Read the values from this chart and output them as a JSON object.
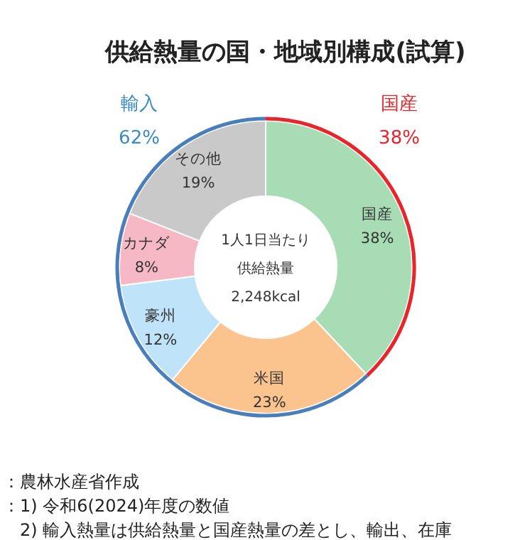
{
  "chart_data": {
    "type": "donut",
    "title": "供給熱量の国・地域別構成(試算)",
    "categories": [
      "国産",
      "米国",
      "豪州",
      "カナダ",
      "その他"
    ],
    "values": [
      38,
      23,
      12,
      8,
      19
    ],
    "value_labels": [
      "38%",
      "23%",
      "12%",
      "8%",
      "19%"
    ],
    "colors": [
      "#a8dcb5",
      "#fbc48e",
      "#bfe4f9",
      "#f6b8c4",
      "#c9c9c9"
    ],
    "annotations": [
      "1人1日当たり",
      "供給熱量",
      "2,248kcal",
      "国産",
      "38%",
      "輸入",
      "62%",
      "：農林水産省作成",
      "：1) 令和6(2024)年度の数値",
      "　2) 輸入熱量は供給熱量と国産熱量の差とし、輸出、在庫"
    ]
  }
}
